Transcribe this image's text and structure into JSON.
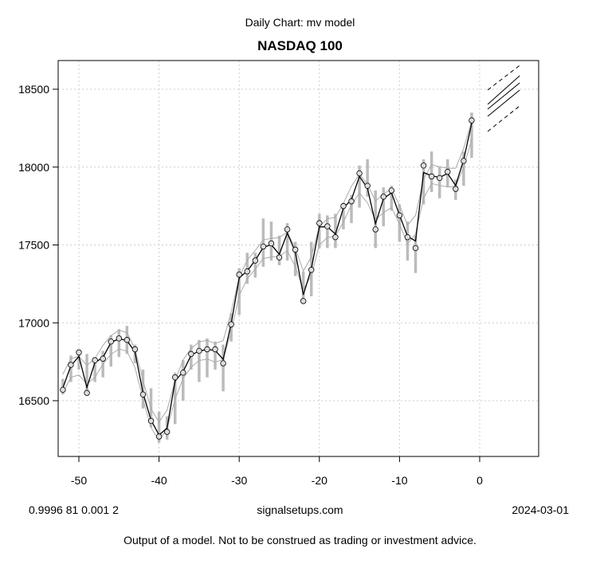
{
  "header": {
    "subtitle": "Daily Chart: mv model",
    "title": "NASDAQ 100"
  },
  "footer": {
    "left": "0.9996 81 0.001 2",
    "center": "signalsetups.com",
    "right": "2024-03-01",
    "disclaimer": "Output of a model.  Not to be construed as trading or investment advice."
  },
  "chart_data": {
    "type": "line",
    "title": "NASDAQ 100",
    "subtitle": "Daily Chart: mv model",
    "xlim": [
      -52.5,
      7.5
    ],
    "ylim": [
      16150,
      18680
    ],
    "xticks": [
      -50,
      -40,
      -30,
      -20,
      -10,
      0
    ],
    "yticks": [
      16500,
      17000,
      17500,
      18000,
      18500
    ],
    "grid": true,
    "x": [
      -52,
      -51,
      -50,
      -49,
      -48,
      -47,
      -46,
      -45,
      -44,
      -43,
      -42,
      -41,
      -40,
      -39,
      -38,
      -37,
      -36,
      -35,
      -34,
      -33,
      -32,
      -31,
      -30,
      -29,
      -28,
      -27,
      -26,
      -25,
      -24,
      -23,
      -22,
      -21,
      -20,
      -19,
      -18,
      -17,
      -16,
      -15,
      -14,
      -13,
      -12,
      -11,
      -10,
      -9,
      -8,
      -7,
      -6,
      -5,
      -4,
      -3,
      -2,
      -1
    ],
    "close": [
      16570,
      16730,
      16810,
      16550,
      16760,
      16770,
      16880,
      16900,
      16890,
      16830,
      16540,
      16370,
      16270,
      16300,
      16650,
      16680,
      16800,
      16820,
      16830,
      16830,
      16740,
      16990,
      17310,
      17330,
      17400,
      17490,
      17510,
      17420,
      17600,
      17470,
      17140,
      17340,
      17640,
      17620,
      17550,
      17750,
      17780,
      17960,
      17880,
      17600,
      17810,
      17850,
      17690,
      17550,
      17480,
      18010,
      17940,
      17930,
      17970,
      17860,
      18040,
      18300
    ],
    "low": [
      16540,
      16620,
      16700,
      16540,
      16620,
      16650,
      16720,
      16780,
      16800,
      16740,
      16450,
      16330,
      16230,
      16250,
      16350,
      16500,
      16700,
      16620,
      16650,
      16700,
      16560,
      16880,
      17050,
      17250,
      17290,
      17360,
      17400,
      17370,
      17400,
      17300,
      17120,
      17170,
      17480,
      17480,
      17480,
      17600,
      17640,
      17740,
      17810,
      17480,
      17620,
      17720,
      17520,
      17400,
      17320,
      17760,
      17840,
      17800,
      17870,
      17790,
      17880,
      18060
    ],
    "high": [
      16640,
      16790,
      16830,
      16800,
      16780,
      16820,
      16920,
      16960,
      16980,
      16860,
      16700,
      16580,
      16430,
      16400,
      16680,
      16760,
      16860,
      16890,
      16900,
      16880,
      16860,
      17060,
      17350,
      17450,
      17450,
      17670,
      17650,
      17560,
      17640,
      17520,
      17330,
      17520,
      17700,
      17690,
      17700,
      17770,
      17820,
      18010,
      18050,
      17850,
      17870,
      17880,
      17760,
      17650,
      17560,
      18050,
      18100,
      18000,
      18050,
      17920,
      18100,
      18350
    ],
    "forecast": {
      "x": [
        1,
        5
      ],
      "lines": [
        {
          "style": "dashed",
          "y": [
            18495,
            18653
          ]
        },
        {
          "style": "solid",
          "y": [
            18403,
            18587
          ]
        },
        {
          "style": "solid",
          "y": [
            18372,
            18541
          ]
        },
        {
          "style": "solid",
          "y": [
            18326,
            18495
          ]
        },
        {
          "style": "dashed",
          "y": [
            18229,
            18393
          ]
        }
      ]
    }
  }
}
